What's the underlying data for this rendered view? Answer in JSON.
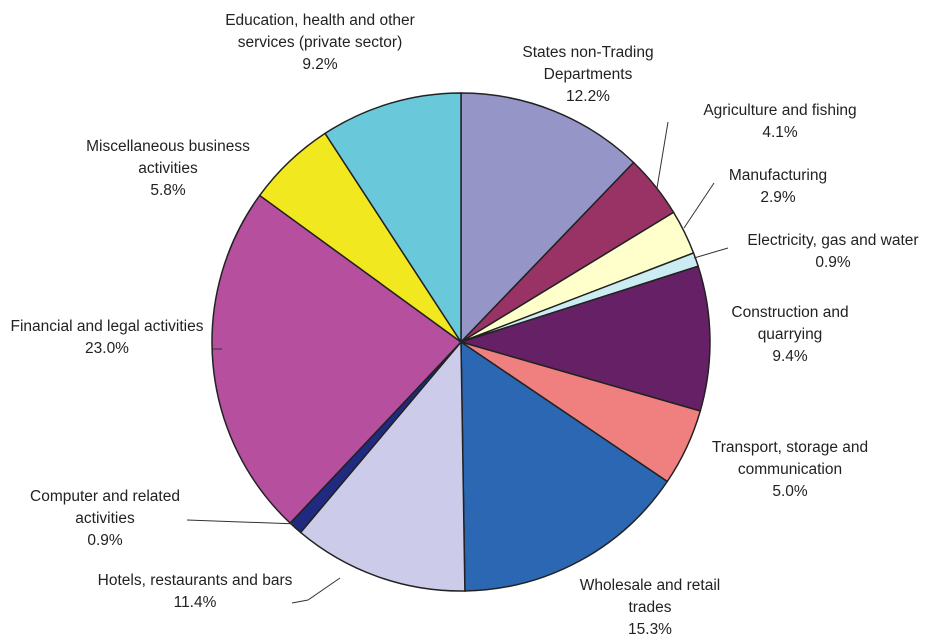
{
  "chart_data": {
    "type": "pie",
    "categories": [
      "States non-Trading Departments",
      "Agriculture and fishing",
      "Manufacturing",
      "Electricity, gas and water",
      "Construction and quarrying",
      "Transport, storage and communication",
      "Wholesale and retail trades",
      "Hotels, restaurants and bars",
      "Computer and related activities",
      "Financial and legal activities",
      "Miscellaneous business activities",
      "Education, health and other services (private sector)"
    ],
    "values": [
      12.2,
      4.1,
      2.9,
      0.9,
      9.4,
      5.0,
      15.3,
      11.4,
      0.9,
      23.0,
      5.8,
      9.2
    ],
    "value_labels": [
      "12.2%",
      "4.1%",
      "2.9%",
      "0.9%",
      "9.4%",
      "5.0%",
      "15.3%",
      "11.4%",
      "0.9%",
      "23.0%",
      "5.8%",
      "9.2%"
    ],
    "colors": [
      "#9595c8",
      "#993366",
      "#ffffcc",
      "#ccecf4",
      "#662066",
      "#f08080",
      "#2b67b2",
      "#ccccea",
      "#1f2a80",
      "#b64f9e",
      "#f2e81f",
      "#69c9da"
    ]
  }
}
